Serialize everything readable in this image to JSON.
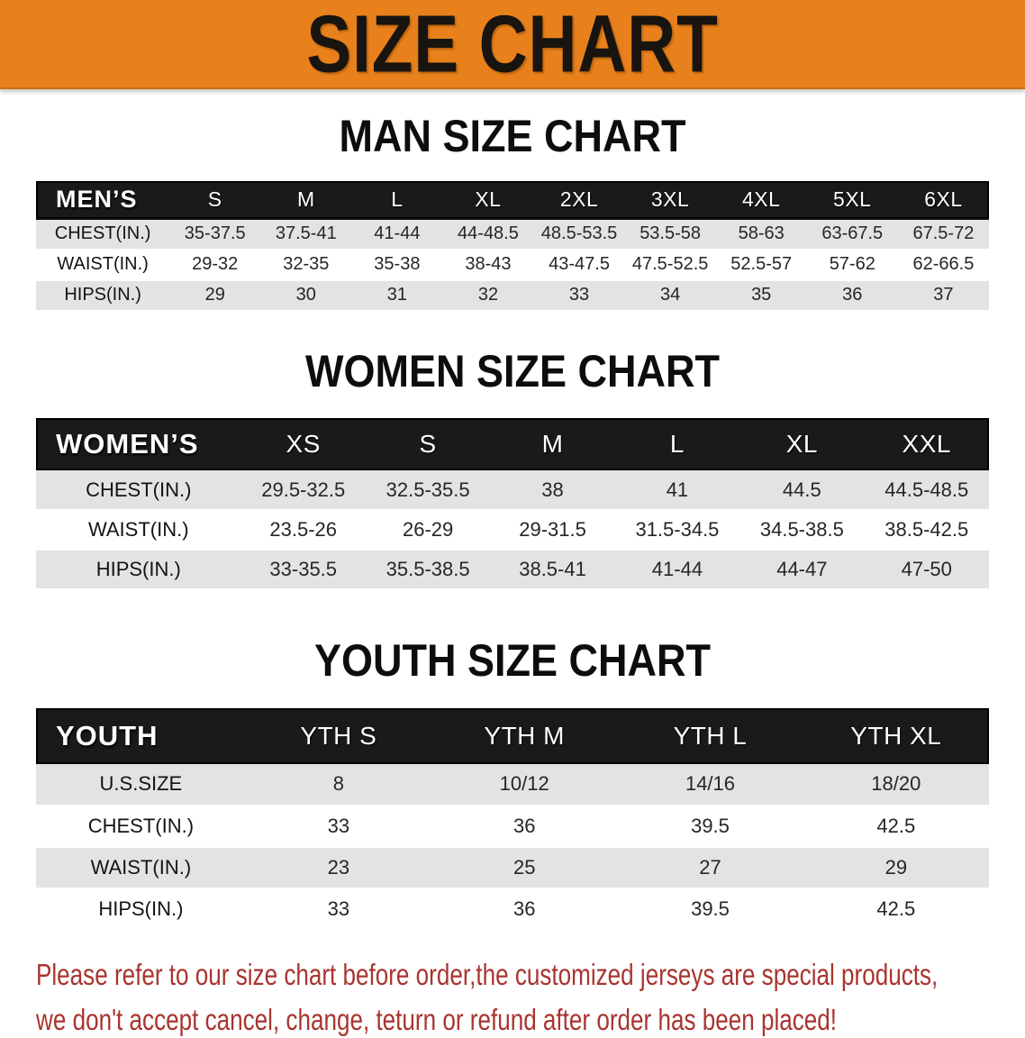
{
  "banner": {
    "title": "SIZE CHART"
  },
  "sections": [
    {
      "heading": "MAN SIZE CHART",
      "table": {
        "header_label": "MEN’S",
        "columns": [
          "S",
          "M",
          "L",
          "XL",
          "2XL",
          "3XL",
          "4XL",
          "5XL",
          "6XL"
        ],
        "rows": [
          {
            "label": "CHEST(IN.)",
            "values": [
              "35-37.5",
              "37.5-41",
              "41-44",
              "44-48.5",
              "48.5-53.5",
              "53.5-58",
              "58-63",
              "63-67.5",
              "67.5-72"
            ]
          },
          {
            "label": "WAIST(IN.)",
            "values": [
              "29-32",
              "32-35",
              "35-38",
              "38-43",
              "43-47.5",
              "47.5-52.5",
              "52.5-57",
              "57-62",
              "62-66.5"
            ]
          },
          {
            "label": "HIPS(IN.)",
            "values": [
              "29",
              "30",
              "31",
              "32",
              "33",
              "34",
              "35",
              "36",
              "37"
            ]
          }
        ]
      }
    },
    {
      "heading": "WOMEN SIZE CHART",
      "table": {
        "header_label": "WOMEN’S",
        "columns": [
          "XS",
          "S",
          "M",
          "L",
          "XL",
          "XXL"
        ],
        "rows": [
          {
            "label": "CHEST(IN.)",
            "values": [
              "29.5-32.5",
              "32.5-35.5",
              "38",
              "41",
              "44.5",
              "44.5-48.5"
            ]
          },
          {
            "label": "WAIST(IN.)",
            "values": [
              "23.5-26",
              "26-29",
              "29-31.5",
              "31.5-34.5",
              "34.5-38.5",
              "38.5-42.5"
            ]
          },
          {
            "label": "HIPS(IN.)",
            "values": [
              "33-35.5",
              "35.5-38.5",
              "38.5-41",
              "41-44",
              "44-47",
              "47-50"
            ]
          }
        ]
      }
    },
    {
      "heading": "YOUTH SIZE CHART",
      "table": {
        "header_label": "YOUTH",
        "columns": [
          "YTH S",
          "YTH M",
          "YTH L",
          "YTH XL"
        ],
        "rows": [
          {
            "label": "U.S.SIZE",
            "values": [
              "8",
              "10/12",
              "14/16",
              "18/20"
            ]
          },
          {
            "label": "CHEST(IN.)",
            "values": [
              "33",
              "36",
              "39.5",
              "42.5"
            ]
          },
          {
            "label": "WAIST(IN.)",
            "values": [
              "23",
              "25",
              "27",
              "29"
            ]
          },
          {
            "label": "HIPS(IN.)",
            "values": [
              "33",
              "36",
              "39.5",
              "42.5"
            ]
          }
        ]
      }
    }
  ],
  "disclaimer": {
    "lines": [
      "Please refer to our size chart before order,the customized jerseys are special products,",
      "we don't accept cancel, change, teturn or refund after order has been placed!"
    ]
  },
  "colors": {
    "banner_bg": "#e8811c",
    "table_header_bg": "#1a1a1a",
    "stripe_row_bg": "#e3e3e3",
    "disclaimer_text": "#a83530"
  }
}
